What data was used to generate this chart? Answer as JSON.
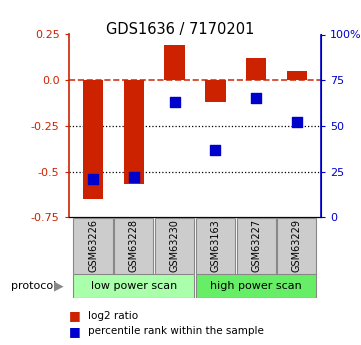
{
  "title": "GDS1636 / 7170201",
  "samples": [
    "GSM63226",
    "GSM63228",
    "GSM63230",
    "GSM63163",
    "GSM63227",
    "GSM63229"
  ],
  "log2_ratio": [
    -0.65,
    -0.57,
    0.19,
    -0.12,
    0.12,
    0.05
  ],
  "percentile_rank": [
    21,
    22,
    63,
    37,
    65,
    52
  ],
  "bar_color": "#cc2200",
  "dot_color": "#0000cc",
  "left_ylim": [
    -0.75,
    0.25
  ],
  "left_yticks": [
    0.25,
    0.0,
    -0.25,
    -0.5,
    -0.75
  ],
  "right_yticks": [
    100,
    75,
    50,
    25,
    0
  ],
  "right_yticklabels": [
    "100%",
    "75",
    "50",
    "25",
    "0"
  ],
  "dotted_lines": [
    -0.25,
    -0.5
  ],
  "low_power_color": "#aaffaa",
  "high_power_color": "#66ee66",
  "low_power_label": "low power scan",
  "high_power_label": "high power scan",
  "protocol_label": "protocol",
  "legend_log2": "log2 ratio",
  "legend_pct": "percentile rank within the sample",
  "bar_width": 0.5,
  "plot_bg": "#ffffff"
}
